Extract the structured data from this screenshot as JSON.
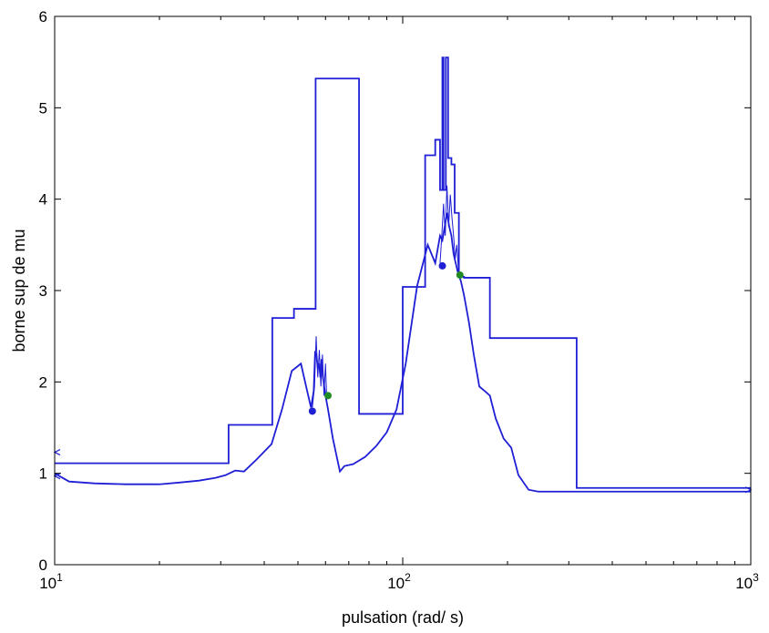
{
  "chart_data": {
    "type": "line",
    "title": "",
    "xlabel": "pulsation (rad/ s)",
    "ylabel": "borne sup de mu",
    "xscale": "log",
    "xlim": [
      10,
      1000
    ],
    "ylim": [
      0,
      6
    ],
    "x_ticks": [
      {
        "value": 10,
        "base": "10",
        "exp": "1"
      },
      {
        "value": 100,
        "base": "10",
        "exp": "2"
      },
      {
        "value": 1000,
        "base": "10",
        "exp": "3"
      }
    ],
    "y_ticks": [
      0,
      1,
      2,
      3,
      4,
      5,
      6
    ],
    "grid": false,
    "legend": "none",
    "color": "#1f1fd6",
    "series": [
      {
        "style": "step",
        "x": [
          10,
          31.6,
          31.6,
          42.2,
          42.2,
          48.7,
          48.7,
          56.2,
          56.2,
          74.9,
          74.9,
          100,
          100,
          116,
          116,
          124,
          124,
          128,
          128,
          130,
          130,
          131,
          131,
          133,
          133,
          135,
          135,
          138,
          138,
          141,
          141,
          145,
          145,
          150,
          150,
          178,
          178,
          316,
          316,
          1000
        ],
        "y": [
          1.11,
          1.11,
          1.53,
          1.53,
          2.7,
          2.7,
          2.8,
          2.8,
          5.32,
          5.32,
          1.65,
          1.65,
          3.04,
          3.04,
          4.48,
          4.48,
          4.65,
          4.65,
          4.1,
          4.1,
          5.55,
          5.55,
          4.1,
          4.1,
          5.55,
          5.55,
          4.45,
          4.45,
          4.38,
          4.38,
          3.85,
          3.85,
          3.15,
          3.15,
          3.14,
          3.14,
          2.48,
          2.48,
          0.84,
          0.84
        ]
      },
      {
        "style": "line",
        "x": [
          10,
          11,
          13,
          16,
          20,
          23,
          26,
          29,
          31,
          33,
          35,
          38,
          42,
          45,
          48,
          51,
          53,
          54.5,
          55.5,
          56,
          56.5,
          57,
          57.5,
          58,
          58.5,
          59,
          60,
          61,
          63,
          66,
          68,
          72,
          78,
          84,
          90,
          96,
          102,
          110,
          118,
          124,
          128,
          130,
          132,
          134,
          136,
          138,
          140,
          142,
          144,
          147,
          150,
          155,
          160,
          166,
          172,
          178,
          185,
          195,
          205,
          215,
          230,
          245,
          280,
          350,
          500,
          700,
          1000
        ],
        "y": [
          1.0,
          0.91,
          0.89,
          0.88,
          0.88,
          0.9,
          0.92,
          0.95,
          0.98,
          1.03,
          1.02,
          1.15,
          1.32,
          1.7,
          2.12,
          2.2,
          1.92,
          1.72,
          1.9,
          2.32,
          2.3,
          2.15,
          2.2,
          2.05,
          2.25,
          2.05,
          1.85,
          1.7,
          1.38,
          1.02,
          1.08,
          1.1,
          1.18,
          1.3,
          1.45,
          1.7,
          2.2,
          3.05,
          3.5,
          3.3,
          3.6,
          3.55,
          3.7,
          3.85,
          3.7,
          3.6,
          3.4,
          3.3,
          3.2,
          3.1,
          2.95,
          2.65,
          2.3,
          1.95,
          1.9,
          1.85,
          1.6,
          1.38,
          1.28,
          0.98,
          0.82,
          0.8,
          0.8,
          0.8,
          0.8,
          0.8,
          0.8
        ]
      },
      {
        "style": "thin",
        "x": [
          55,
          55.8,
          56.4,
          57,
          57.6,
          58.2,
          58.8,
          59.4,
          60,
          60.5
        ],
        "y": [
          1.72,
          1.95,
          2.5,
          2.05,
          2.35,
          1.95,
          2.3,
          1.85,
          2.2,
          1.8
        ]
      },
      {
        "style": "thin",
        "x": [
          128,
          129.5,
          131,
          132.5,
          134,
          135.5,
          137,
          138.5,
          140,
          141.5,
          143,
          145
        ],
        "y": [
          3.3,
          3.6,
          3.95,
          3.6,
          4.15,
          3.7,
          4.05,
          3.8,
          3.6,
          3.35,
          3.5,
          3.15
        ]
      }
    ],
    "markers": [
      {
        "x": 55,
        "y": 1.68,
        "color": "#1f1fd6"
      },
      {
        "x": 61,
        "y": 1.85,
        "color": "#228b22"
      },
      {
        "x": 130,
        "y": 3.27,
        "color": "#1f1fd6"
      },
      {
        "x": 146,
        "y": 3.17,
        "color": "#228b22"
      }
    ],
    "edge_markers": [
      {
        "x": 10,
        "y": 1.23,
        "side": "left"
      },
      {
        "x": 10,
        "y": 0.97,
        "side": "left"
      },
      {
        "x": 1000,
        "y": 0.82,
        "side": "right"
      }
    ]
  }
}
